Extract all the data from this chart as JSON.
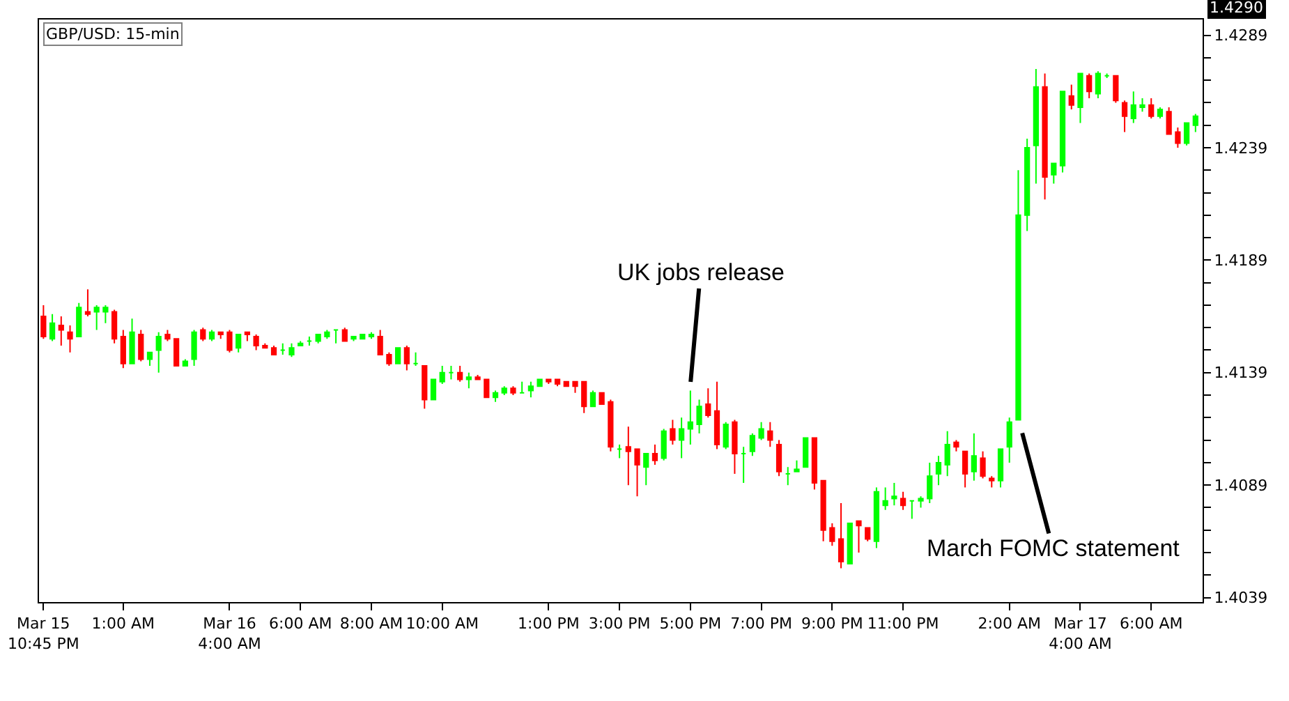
{
  "chart_data": {
    "type": "candlestick",
    "title": "GBP/USD: 15-min",
    "categories": [
      "Mar 15\n10:45 PM",
      null,
      null,
      null,
      null,
      null,
      null,
      null,
      null,
      "1:00 AM",
      null,
      null,
      null,
      null,
      null,
      null,
      null,
      null,
      null,
      null,
      null,
      "Mar 16\n4:00 AM",
      null,
      null,
      null,
      null,
      null,
      null,
      null,
      "6:00 AM",
      null,
      null,
      null,
      null,
      null,
      null,
      null,
      "8:00 AM",
      null,
      null,
      null,
      null,
      null,
      null,
      null,
      "10:00 AM",
      null,
      null,
      null,
      null,
      null,
      null,
      null,
      null,
      null,
      null,
      null,
      "1:00 PM",
      null,
      null,
      null,
      null,
      null,
      null,
      null,
      "3:00 PM",
      null,
      null,
      null,
      null,
      null,
      null,
      null,
      "5:00 PM",
      null,
      null,
      null,
      null,
      null,
      null,
      null,
      "7:00 PM",
      null,
      null,
      null,
      null,
      null,
      null,
      null,
      "9:00 PM",
      null,
      null,
      null,
      null,
      null,
      null,
      null,
      "11:00 PM",
      null,
      null,
      null,
      null,
      null,
      null,
      null,
      null,
      null,
      null,
      null,
      "2:00 AM",
      null,
      null,
      null,
      null,
      null,
      null,
      null,
      "Mar 17\n4:00 AM",
      null,
      null,
      null,
      null,
      null,
      null,
      null,
      "6:00 AM",
      null,
      null,
      null,
      null,
      null
    ],
    "ohlc": [
      [
        1.4164,
        1.4169,
        1.4154,
        1.4155
      ],
      [
        1.4154,
        1.4165,
        1.4153,
        1.4161
      ],
      [
        1.416,
        1.4164,
        1.4151,
        1.4158
      ],
      [
        1.4157,
        1.416,
        1.4148,
        1.4154
      ],
      [
        1.4155,
        1.417,
        1.4155,
        1.4168
      ],
      [
        1.4166,
        1.4176,
        1.4164,
        1.4165
      ],
      [
        1.4166,
        1.4169,
        1.4158,
        1.4168
      ],
      [
        1.4166,
        1.4169,
        1.4161,
        1.4168
      ],
      [
        1.4166,
        1.4167,
        1.4152,
        1.4154
      ],
      [
        1.4155,
        1.4158,
        1.4141,
        1.4143
      ],
      [
        1.4143,
        1.4163,
        1.4143,
        1.4157
      ],
      [
        1.4156,
        1.4158,
        1.4144,
        1.4145
      ],
      [
        1.4145,
        1.4148,
        1.4142,
        1.4148
      ],
      [
        1.4149,
        1.4157,
        1.4139,
        1.4155
      ],
      [
        1.4156,
        1.4158,
        1.4153,
        1.4154
      ],
      [
        1.4154,
        1.4154,
        1.4142,
        1.4142
      ],
      [
        1.4142,
        1.4145,
        1.4142,
        1.4144
      ],
      [
        1.4145,
        1.4158,
        1.4142,
        1.4157
      ],
      [
        1.4158,
        1.4159,
        1.4153,
        1.4154
      ],
      [
        1.4154,
        1.4158,
        1.4153,
        1.4157
      ],
      [
        1.4157,
        1.4157,
        1.4154,
        1.4156
      ],
      [
        1.4157,
        1.4158,
        1.4148,
        1.4149
      ],
      [
        1.415,
        1.4156,
        1.4148,
        1.4156
      ],
      [
        1.4157,
        1.4157,
        1.4153,
        1.4156
      ],
      [
        1.4155,
        1.4156,
        1.4149,
        1.4151
      ],
      [
        1.4151,
        1.4152,
        1.415,
        1.415
      ],
      [
        1.415,
        1.4151,
        1.4147,
        1.4147
      ],
      [
        1.4149,
        1.4152,
        1.4147,
        1.4149
      ],
      [
        1.4147,
        1.4152,
        1.4146,
        1.415
      ],
      [
        1.4151,
        1.4153,
        1.4151,
        1.4152
      ],
      [
        1.4153,
        1.4155,
        1.4151,
        1.4153
      ],
      [
        1.4153,
        1.4156,
        1.4152,
        1.4156
      ],
      [
        1.4155,
        1.4158,
        1.4154,
        1.4157
      ],
      [
        1.4158,
        1.4158,
        1.4152,
        1.4158
      ],
      [
        1.4158,
        1.4159,
        1.4153,
        1.4153
      ],
      [
        1.4154,
        1.4155,
        1.4153,
        1.4155
      ],
      [
        1.4154,
        1.4156,
        1.4154,
        1.4156
      ],
      [
        1.4155,
        1.4157,
        1.4154,
        1.4156
      ],
      [
        1.4155,
        1.4158,
        1.4147,
        1.4147
      ],
      [
        1.4147,
        1.4148,
        1.4142,
        1.4143
      ],
      [
        1.4143,
        1.415,
        1.4143,
        1.415
      ],
      [
        1.415,
        1.4151,
        1.414,
        1.4143
      ],
      [
        1.4143,
        1.4148,
        1.4142,
        1.4143
      ],
      [
        1.4142,
        1.4142,
        1.4123,
        1.4127
      ],
      [
        1.4127,
        1.4136,
        1.4127,
        1.4136
      ],
      [
        1.4135,
        1.4142,
        1.4134,
        1.4139
      ],
      [
        1.4139,
        1.4142,
        1.4136,
        1.4139
      ],
      [
        1.4139,
        1.4142,
        1.4135,
        1.4136
      ],
      [
        1.4136,
        1.4139,
        1.4132,
        1.4137
      ],
      [
        1.4137,
        1.4138,
        1.4136,
        1.4136
      ],
      [
        1.4136,
        1.4136,
        1.4128,
        1.4128
      ],
      [
        1.4128,
        1.4131,
        1.4126,
        1.413
      ],
      [
        1.413,
        1.4133,
        1.4129,
        1.4132
      ],
      [
        1.4132,
        1.4133,
        1.4129,
        1.413
      ],
      [
        1.413,
        1.4135,
        1.413,
        1.413
      ],
      [
        1.4131,
        1.4135,
        1.4128,
        1.4133
      ],
      [
        1.4133,
        1.4136,
        1.4133,
        1.4136
      ],
      [
        1.4136,
        1.4136,
        1.4134,
        1.4135
      ],
      [
        1.4136,
        1.4136,
        1.4133,
        1.4134
      ],
      [
        1.4135,
        1.4135,
        1.4133,
        1.4133
      ],
      [
        1.4135,
        1.4135,
        1.413,
        1.4133
      ],
      [
        1.4135,
        1.4135,
        1.4121,
        1.4124
      ],
      [
        1.4124,
        1.4131,
        1.4124,
        1.413
      ],
      [
        1.413,
        1.413,
        1.4125,
        1.4125
      ],
      [
        1.4126,
        1.4127,
        1.4104,
        1.4106
      ],
      [
        1.4105,
        1.4107,
        1.4101,
        1.4105
      ],
      [
        1.4106,
        1.4115,
        1.4089,
        1.4104
      ],
      [
        1.4105,
        1.4105,
        1.4084,
        1.4098
      ],
      [
        1.4097,
        1.4103,
        1.4089,
        1.4103
      ],
      [
        1.4103,
        1.4107,
        1.4098,
        1.41
      ],
      [
        1.4101,
        1.4114,
        1.41,
        1.4113
      ],
      [
        1.4114,
        1.4118,
        1.4107,
        1.4109
      ],
      [
        1.4109,
        1.4119,
        1.4101,
        1.4114
      ],
      [
        1.4114,
        1.4131,
        1.4107,
        1.4117
      ],
      [
        1.4116,
        1.4127,
        1.4112,
        1.4124
      ],
      [
        1.4125,
        1.4132,
        1.4119,
        1.412
      ],
      [
        1.4122,
        1.4135,
        1.4105,
        1.4107
      ],
      [
        1.4106,
        1.4117,
        1.4105,
        1.4116
      ],
      [
        1.4117,
        1.4118,
        1.4094,
        1.4103
      ],
      [
        1.4103,
        1.4106,
        1.409,
        1.4103
      ],
      [
        1.4104,
        1.4112,
        1.4102,
        1.4111
      ],
      [
        1.411,
        1.4117,
        1.4109,
        1.4114
      ],
      [
        1.4113,
        1.4117,
        1.4106,
        1.4109
      ],
      [
        1.4107,
        1.4109,
        1.4093,
        1.4095
      ],
      [
        1.4094,
        1.4097,
        1.4089,
        1.4094
      ],
      [
        1.4095,
        1.41,
        1.4095,
        1.4096
      ],
      [
        1.4097,
        1.411,
        1.4097,
        1.411
      ],
      [
        1.411,
        1.411,
        1.4087,
        1.409
      ],
      [
        1.4091,
        1.4091,
        1.4064,
        1.4069
      ],
      [
        1.407,
        1.4072,
        1.4062,
        1.4064
      ],
      [
        1.4065,
        1.4081,
        1.4052,
        1.4055
      ],
      [
        1.4054,
        1.4072,
        1.4054,
        1.4072
      ],
      [
        1.4073,
        1.4073,
        1.4059,
        1.4071
      ],
      [
        1.407,
        1.407,
        1.4064,
        1.4065
      ],
      [
        1.4064,
        1.4088,
        1.4061,
        1.4086
      ],
      [
        1.408,
        1.4088,
        1.4078,
        1.4082
      ],
      [
        1.4083,
        1.409,
        1.408,
        1.4084
      ],
      [
        1.4083,
        1.4086,
        1.4078,
        1.408
      ],
      [
        1.4082,
        1.4082,
        1.4074,
        1.4082
      ],
      [
        1.4082,
        1.4084,
        1.4079,
        1.4083
      ],
      [
        1.4083,
        1.4099,
        1.4081,
        1.4093
      ],
      [
        1.4094,
        1.4102,
        1.4089,
        1.4099
      ],
      [
        1.4098,
        1.4113,
        1.4093,
        1.4107
      ],
      [
        1.4108,
        1.4109,
        1.4104,
        1.4106
      ],
      [
        1.4104,
        1.4104,
        1.4088,
        1.4094
      ],
      [
        1.4095,
        1.4112,
        1.4091,
        1.4102
      ],
      [
        1.4101,
        1.4104,
        1.4092,
        1.4093
      ],
      [
        1.4092,
        1.4093,
        1.4088,
        1.4091
      ],
      [
        1.4091,
        1.4105,
        1.4088,
        1.4105
      ],
      [
        1.4106,
        1.4119,
        1.4099,
        1.4117
      ],
      [
        1.4118,
        1.4229,
        1.4118,
        1.4209
      ],
      [
        1.4209,
        1.4243,
        1.4202,
        1.4239
      ],
      [
        1.424,
        1.4274,
        1.4223,
        1.4266
      ],
      [
        1.4266,
        1.4272,
        1.4216,
        1.4226
      ],
      [
        1.4227,
        1.4232,
        1.4223,
        1.4232
      ],
      [
        1.4231,
        1.4264,
        1.4228,
        1.4264
      ],
      [
        1.4262,
        1.4267,
        1.4256,
        1.4258
      ],
      [
        1.4257,
        1.4272,
        1.425,
        1.4272
      ],
      [
        1.4271,
        1.4272,
        1.4261,
        1.4264
      ],
      [
        1.4263,
        1.4273,
        1.4261,
        1.4272
      ],
      [
        1.4271,
        1.4272,
        1.427,
        1.4271
      ],
      [
        1.4271,
        1.4271,
        1.4259,
        1.426
      ],
      [
        1.4259,
        1.426,
        1.4246,
        1.4253
      ],
      [
        1.4252,
        1.4264,
        1.425,
        1.4258
      ],
      [
        1.4257,
        1.4261,
        1.4255,
        1.4258
      ],
      [
        1.4258,
        1.4261,
        1.4252,
        1.4253
      ],
      [
        1.4253,
        1.4257,
        1.4252,
        1.4256
      ],
      [
        1.4255,
        1.4257,
        1.4245,
        1.4245
      ],
      [
        1.4246,
        1.4248,
        1.4239,
        1.4241
      ],
      [
        1.4241,
        1.425,
        1.424,
        1.425
      ],
      [
        1.4249,
        1.4254,
        1.4246,
        1.4253
      ]
    ],
    "colors": [
      "#ff0000",
      "#00ff00",
      "#ff0000",
      "#ff0000",
      "#00ff00",
      "#ff0000",
      "#00ff00",
      "#00ff00",
      "#ff0000",
      "#ff0000",
      "#00ff00",
      "#ff0000",
      "#00ff00",
      "#00ff00",
      "#ff0000",
      "#ff0000",
      "#00ff00",
      "#00ff00",
      "#ff0000",
      "#00ff00",
      "#ff0000",
      "#ff0000",
      "#00ff00",
      "#ff0000",
      "#ff0000",
      "#ff0000",
      "#ff0000",
      "#00ff00",
      "#00ff00",
      "#00ff00",
      "#00ff00",
      "#00ff00",
      "#00ff00",
      "#00ff00",
      "#ff0000",
      "#00ff00",
      "#00ff00",
      "#00ff00",
      "#ff0000",
      "#ff0000",
      "#00ff00",
      "#ff0000",
      "#00ff00",
      "#ff0000",
      "#00ff00",
      "#00ff00",
      "#00ff00",
      "#ff0000",
      "#00ff00",
      "#ff0000",
      "#ff0000",
      "#00ff00",
      "#00ff00",
      "#ff0000",
      "#00ff00",
      "#00ff00",
      "#00ff00",
      "#ff0000",
      "#ff0000",
      "#ff0000",
      "#ff0000",
      "#ff0000",
      "#00ff00",
      "#ff0000",
      "#ff0000",
      "#00ff00",
      "#ff0000",
      "#ff0000",
      "#00ff00",
      "#ff0000",
      "#00ff00",
      "#ff0000",
      "#00ff00",
      "#00ff00",
      "#00ff00",
      "#ff0000",
      "#ff0000",
      "#00ff00",
      "#ff0000",
      "#00ff00",
      "#00ff00",
      "#00ff00",
      "#ff0000",
      "#ff0000",
      "#00ff00",
      "#00ff00",
      "#00ff00",
      "#ff0000",
      "#ff0000",
      "#ff0000",
      "#ff0000",
      "#00ff00",
      "#ff0000",
      "#ff0000",
      "#00ff00",
      "#00ff00",
      "#00ff00",
      "#ff0000",
      "#00ff00",
      "#00ff00",
      "#00ff00",
      "#00ff00",
      "#00ff00",
      "#ff0000",
      "#ff0000",
      "#00ff00",
      "#ff0000",
      "#ff0000",
      "#00ff00",
      "#00ff00",
      "#00ff00",
      "#00ff00",
      "#00ff00",
      "#ff0000",
      "#00ff00",
      "#00ff00",
      "#ff0000",
      "#00ff00",
      "#ff0000",
      "#00ff00",
      "#00ff00",
      "#ff0000",
      "#ff0000",
      "#00ff00",
      "#00ff00",
      "#ff0000",
      "#00ff00",
      "#ff0000",
      "#ff0000",
      "#00ff00",
      "#00ff00"
    ],
    "ylim": [
      1.4037,
      1.4296
    ],
    "yticks": [
      1.4039,
      {
        "value": 1.4049,
        "label": null
      },
      {
        "value": 1.4059,
        "label": null
      },
      {
        "value": 1.4069,
        "label": null
      },
      {
        "value": 1.4079,
        "label": null
      },
      1.4089,
      {
        "value": 1.4099,
        "label": null
      },
      {
        "value": 1.4109,
        "label": null
      },
      {
        "value": 1.4119,
        "label": null
      },
      {
        "value": 1.4129,
        "label": null
      },
      1.4139,
      {
        "value": 1.4149,
        "label": null
      },
      {
        "value": 1.4159,
        "label": null
      },
      {
        "value": 1.4169,
        "label": null
      },
      {
        "value": 1.4179,
        "label": null
      },
      1.4189,
      {
        "value": 1.4199,
        "label": null
      },
      {
        "value": 1.4209,
        "label": null
      },
      {
        "value": 1.4219,
        "label": null
      },
      {
        "value": 1.4229,
        "label": null
      },
      1.4239,
      {
        "value": 1.4249,
        "label": null
      },
      {
        "value": 1.4259,
        "label": null
      },
      {
        "value": 1.4269,
        "label": null
      },
      {
        "value": 1.4279,
        "label": null
      },
      1.4289
    ],
    "annotations": [
      "UK jobs release",
      "March FOMC statement",
      "1.4290"
    ]
  }
}
